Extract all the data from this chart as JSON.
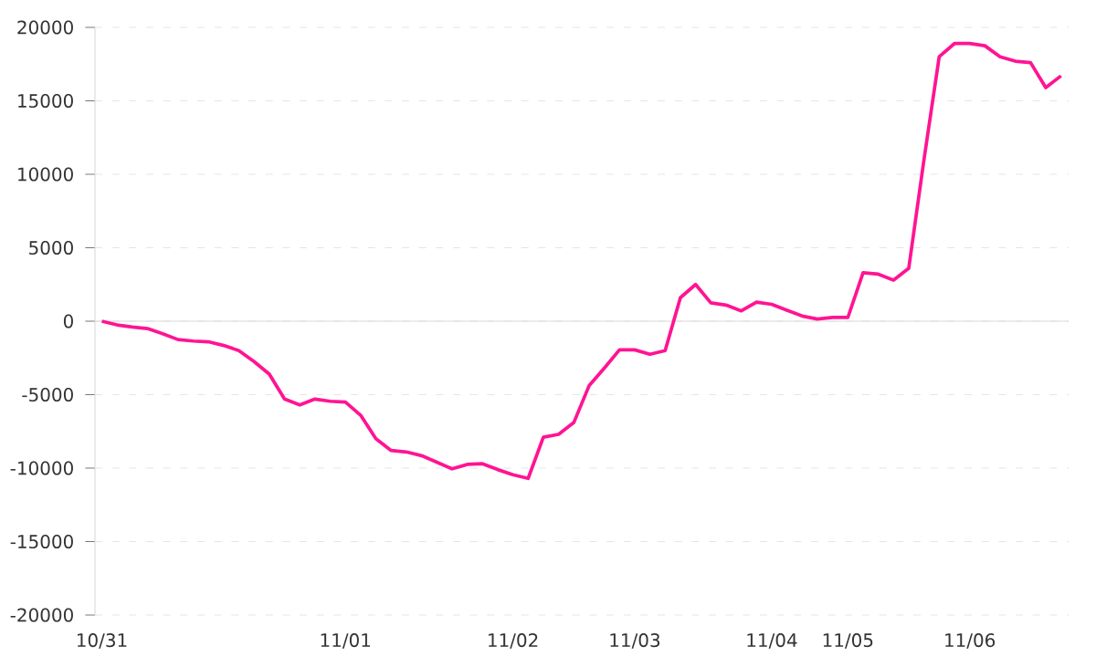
{
  "chart_data": {
    "type": "line",
    "categories": [
      "10/31",
      null,
      null,
      null,
      null,
      null,
      null,
      null,
      null,
      null,
      null,
      null,
      null,
      null,
      null,
      null,
      "11/01",
      null,
      null,
      null,
      null,
      null,
      null,
      null,
      null,
      null,
      null,
      "11/02",
      null,
      null,
      null,
      null,
      null,
      null,
      null,
      "11/03",
      null,
      null,
      null,
      null,
      null,
      null,
      null,
      null,
      "11/04",
      null,
      null,
      null,
      null,
      "11/05",
      null,
      null,
      null,
      null,
      null,
      null,
      null,
      "11/06",
      null,
      null,
      null,
      null,
      null,
      null
    ],
    "series": [
      {
        "color": "#ff1493",
        "values": [
          0,
          -250,
          -400,
          -500,
          -850,
          -1250,
          -1350,
          -1400,
          -1650,
          -2000,
          -2750,
          -3600,
          -5300,
          -5700,
          -5300,
          -5450,
          -5500,
          -6400,
          -8000,
          -8800,
          -8900,
          -9150,
          -9600,
          -10050,
          -9750,
          -9700,
          -10100,
          -10450,
          -10700,
          -7900,
          -7700,
          -6900,
          -4400,
          -3200,
          -1950,
          -1950,
          -2250,
          -2000,
          1600,
          2500,
          1250,
          1100,
          700,
          1300,
          1150,
          750,
          350,
          150,
          250,
          250,
          3300,
          3200,
          2800,
          3600,
          11000,
          18000,
          18900,
          18900,
          18750,
          18000,
          17700,
          17600,
          15900,
          16700
        ]
      }
    ],
    "ylim": [
      -20000,
      20000
    ],
    "yticks": [
      -20000,
      -15000,
      -10000,
      -5000,
      0,
      5000,
      10000,
      15000,
      20000
    ],
    "grid": "y",
    "marker": "none",
    "line_style": "solid"
  }
}
